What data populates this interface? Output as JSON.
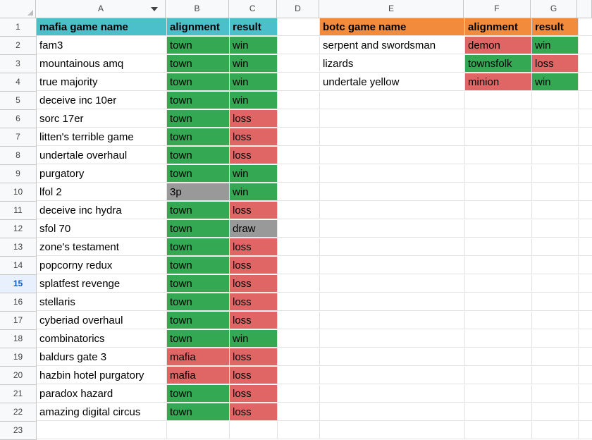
{
  "columns": [
    "A",
    "B",
    "C",
    "D",
    "E",
    "F",
    "G"
  ],
  "colors": {
    "teal": "#4bbfca",
    "orange": "#f28b3c",
    "green": "#34a853",
    "red": "#e06666",
    "gray": "#999999"
  },
  "row_numbers": [
    "1",
    "2",
    "3",
    "4",
    "5",
    "6",
    "7",
    "8",
    "9",
    "10",
    "11",
    "12",
    "13",
    "14",
    "15",
    "16",
    "17",
    "18",
    "19",
    "20",
    "21",
    "22",
    "23"
  ],
  "selected_row": "15",
  "mafia_table": {
    "headers": [
      "mafia game name",
      "alignment",
      "result"
    ],
    "rows": [
      {
        "name": "fam3",
        "alignment": "town",
        "result": "win"
      },
      {
        "name": "mountainous amq",
        "alignment": "town",
        "result": "win"
      },
      {
        "name": "true majority",
        "alignment": "town",
        "result": "win"
      },
      {
        "name": "deceive inc 10er",
        "alignment": "town",
        "result": "win"
      },
      {
        "name": "sorc 17er",
        "alignment": "town",
        "result": "loss"
      },
      {
        "name": "litten's terrible game",
        "alignment": "town",
        "result": "loss"
      },
      {
        "name": "undertale overhaul",
        "alignment": "town",
        "result": "loss"
      },
      {
        "name": "purgatory",
        "alignment": "town",
        "result": "win"
      },
      {
        "name": "lfol 2",
        "alignment": "3p",
        "result": "win"
      },
      {
        "name": "deceive inc hydra",
        "alignment": "town",
        "result": "loss"
      },
      {
        "name": "sfol 70",
        "alignment": "town",
        "result": "draw"
      },
      {
        "name": "zone's testament",
        "alignment": "town",
        "result": "loss"
      },
      {
        "name": "popcorny redux",
        "alignment": "town",
        "result": "loss"
      },
      {
        "name": "splatfest revenge",
        "alignment": "town",
        "result": "loss"
      },
      {
        "name": "stellaris",
        "alignment": "town",
        "result": "loss"
      },
      {
        "name": "cyberiad overhaul",
        "alignment": "town",
        "result": "loss"
      },
      {
        "name": "combinatorics",
        "alignment": "town",
        "result": "win"
      },
      {
        "name": "baldurs gate 3",
        "alignment": "mafia",
        "result": "loss"
      },
      {
        "name": "hazbin hotel purgatory",
        "alignment": "mafia",
        "result": "loss"
      },
      {
        "name": "paradox hazard",
        "alignment": "town",
        "result": "loss"
      },
      {
        "name": "amazing digital circus",
        "alignment": "town",
        "result": "loss"
      }
    ]
  },
  "botc_table": {
    "headers": [
      "botc game name",
      "alignment",
      "result"
    ],
    "rows": [
      {
        "name": "serpent and swordsman",
        "alignment": "demon",
        "result": "win"
      },
      {
        "name": "lizards",
        "alignment": "townsfolk",
        "result": "loss"
      },
      {
        "name": "undertale yellow",
        "alignment": "minion",
        "result": "win"
      }
    ]
  }
}
